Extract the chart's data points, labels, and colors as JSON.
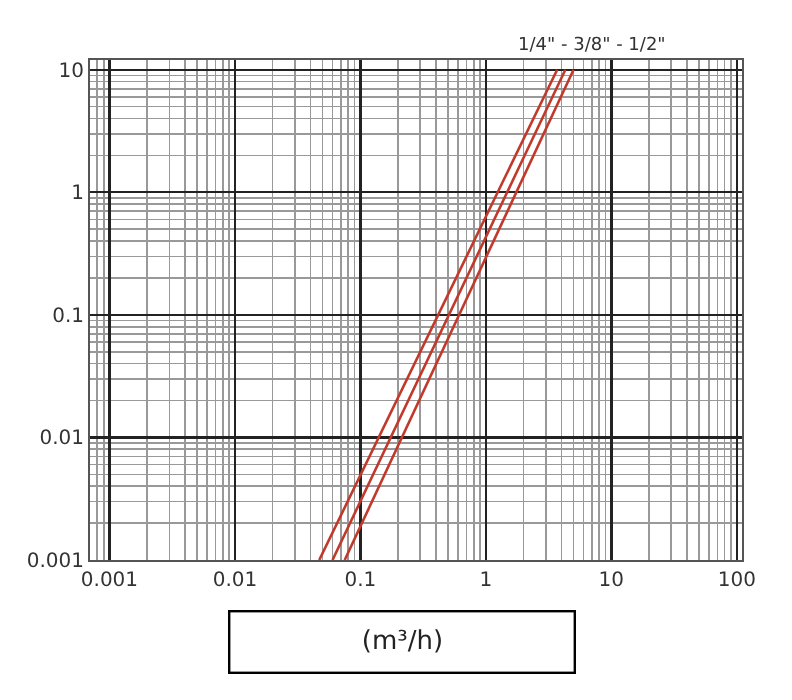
{
  "chart_data": {
    "type": "line",
    "log": "xy",
    "grid": true,
    "marker": "none",
    "line_style": "solid",
    "xlabel": "(m³/h)",
    "xlim": [
      0.0007,
      110
    ],
    "ylim": [
      0.001,
      12
    ],
    "xticks": [
      0.001,
      0.01,
      0.1,
      1,
      10,
      100
    ],
    "yticks": [
      0.001,
      0.01,
      0.1,
      1,
      10
    ],
    "annotations": [
      "1/4\" - 3/8\" - 1/2\""
    ],
    "series": [
      {
        "color": "#c0392b",
        "x": [
          0.047,
          3.7
        ],
        "values": [
          0.001,
          10
        ]
      },
      {
        "color": "#c0392b",
        "x": [
          0.06,
          4.3
        ],
        "values": [
          0.001,
          10
        ]
      },
      {
        "color": "#c0392b",
        "x": [
          0.075,
          5.0
        ],
        "values": [
          0.001,
          10
        ]
      }
    ]
  }
}
